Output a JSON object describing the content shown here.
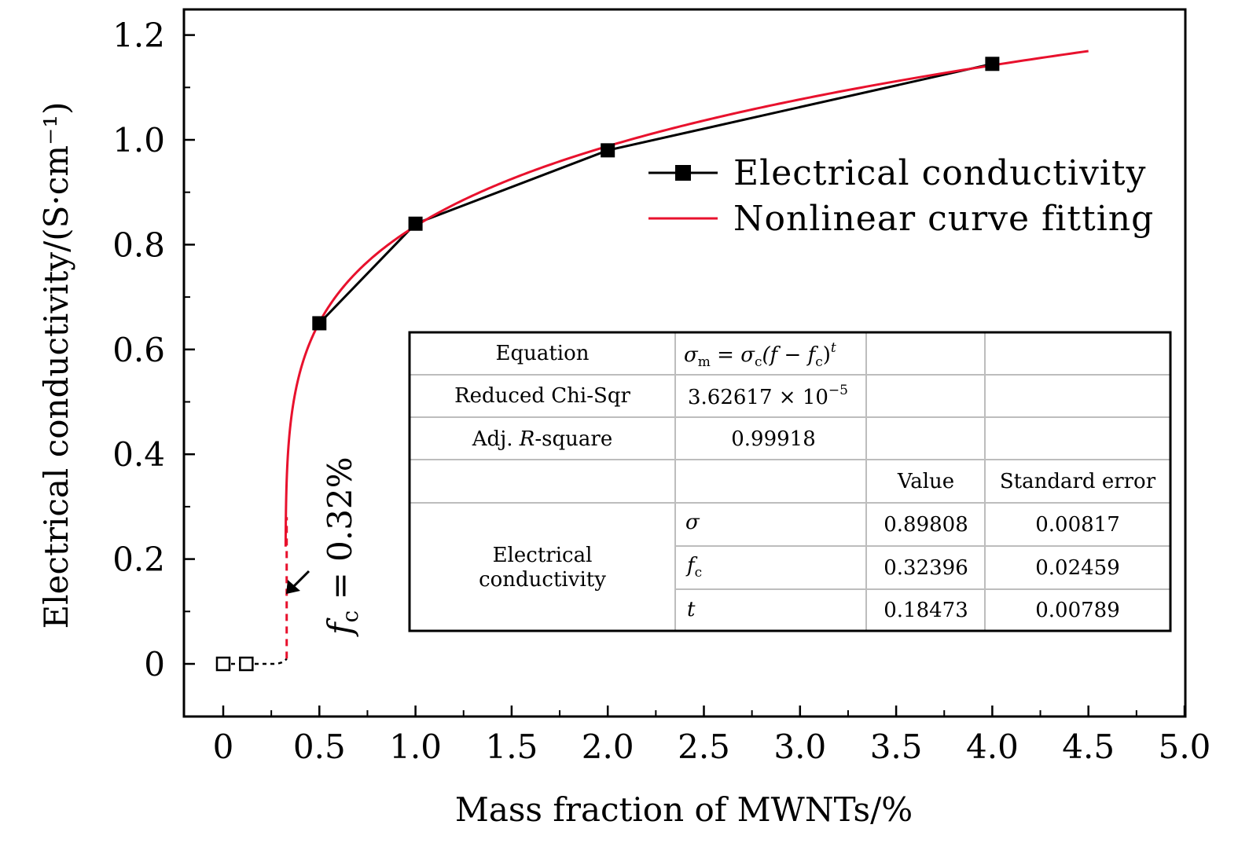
{
  "chart_data": {
    "type": "line",
    "xlabel": "Mass fraction of MWNTs/%",
    "ylabel": "Electrical conductivity/(S·cm⁻¹)",
    "xlim": [
      -0.2,
      5.0
    ],
    "ylim": [
      -0.1,
      1.25
    ],
    "x_ticks": [
      0,
      0.5,
      1.0,
      1.5,
      2.0,
      2.5,
      3.0,
      3.5,
      4.0,
      4.5,
      5.0
    ],
    "x_tick_labels": [
      "0",
      "0.5",
      "1.0",
      "1.5",
      "2.0",
      "2.5",
      "3.0",
      "3.5",
      "4.0",
      "4.5",
      "5.0"
    ],
    "y_ticks": [
      0,
      0.2,
      0.4,
      0.6,
      0.8,
      1.0,
      1.2
    ],
    "y_tick_labels": [
      "0",
      "0.2",
      "0.4",
      "0.6",
      "0.8",
      "1.0",
      "1.2"
    ],
    "legend_position": "top-right",
    "series": [
      {
        "name": "Electrical conductivity",
        "style": "line-with-filled-squares",
        "color": "#000000",
        "x": [
          0.5,
          1.0,
          2.0,
          4.0
        ],
        "y": [
          0.65,
          0.84,
          0.98,
          1.145
        ]
      },
      {
        "name": "Nonlinear curve fitting",
        "style": "line",
        "color": "#e8112d",
        "model": "sigma_m = sigma_c (f - f_c)^t",
        "params": {
          "sigma_c": 0.89808,
          "f_c": 0.32396,
          "t": 0.18473
        },
        "x_range": [
          0.3245,
          4.5
        ]
      }
    ],
    "below_threshold_points": {
      "style": "open-squares-dashed",
      "color": "#000000",
      "x": [
        0,
        0.12
      ],
      "y": [
        0,
        0
      ]
    },
    "threshold_marker": {
      "x": 0.33,
      "y_from": 0.01,
      "y_to": 0.28,
      "color": "#e8112d"
    },
    "annotation": {
      "prefix": "f",
      "subscript": "c",
      "suffix": " = 0.32%"
    }
  },
  "fit_table": {
    "equation_label": "Equation",
    "equation": {
      "lhs_sym": "σ",
      "lhs_sub": "m",
      "mid": " = ",
      "sym2": "σ",
      "sub2": "c",
      "paren": "(f − f",
      "sub3": "c",
      "close": ")",
      "exp": "t"
    },
    "chi_label": "Reduced Chi-Sqr",
    "chi_mantissa": "3.62617 × 10",
    "chi_exp": "−5",
    "r_label_pre": "Adj. ",
    "r_label_italic": "R",
    "r_label_post": "-square",
    "r_value": "0.99918",
    "col_value": "Value",
    "col_error": "Standard error",
    "group_line1": "Electrical",
    "group_line2": "conductivity",
    "rows": [
      {
        "param": "σ",
        "sub": "",
        "value": "0.89808",
        "error": "0.00817"
      },
      {
        "param": "f",
        "sub": "c",
        "value": "0.32396",
        "error": "0.02459"
      },
      {
        "param": "t",
        "sub": "",
        "value": "0.18473",
        "error": "0.00789"
      }
    ]
  }
}
